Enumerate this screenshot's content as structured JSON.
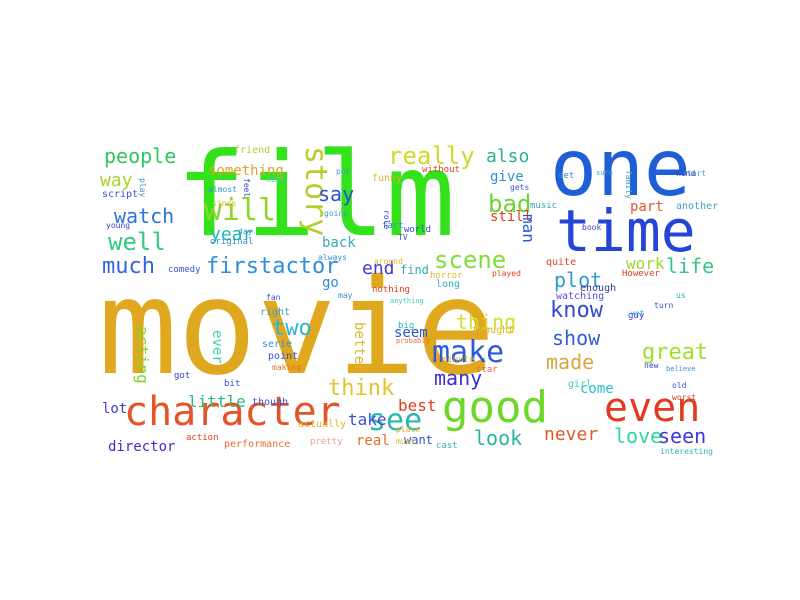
{
  "words": [
    {
      "text": "movie",
      "color": "#e0a81e",
      "key": "movie"
    },
    {
      "text": "film",
      "color": "#33e21a",
      "key": "film"
    },
    {
      "text": "one",
      "color": "#1f5fd6",
      "key": "one"
    },
    {
      "text": "time",
      "color": "#2545d8",
      "key": "time"
    },
    {
      "text": "character",
      "color": "#e4542b",
      "key": "character"
    },
    {
      "text": "good",
      "color": "#6ed82a",
      "key": "good"
    },
    {
      "text": "even",
      "color": "#e03a1f",
      "key": "even"
    },
    {
      "text": "story",
      "color": "#b8cc2a",
      "key": "story"
    },
    {
      "text": "will",
      "color": "#8fd62a",
      "key": "will"
    },
    {
      "text": "make",
      "color": "#2d5bd8",
      "key": "make"
    },
    {
      "text": "see",
      "color": "#2ab7b0",
      "key": "see"
    },
    {
      "text": "really",
      "color": "#d0d82a",
      "key": "really"
    },
    {
      "text": "scene",
      "color": "#82dc3a",
      "key": "scene"
    },
    {
      "text": "firstactor",
      "color": "#2e8fd8",
      "key": "firstactor"
    },
    {
      "text": "people",
      "color": "#30c65e",
      "key": "people"
    },
    {
      "text": "well",
      "color": "#34cc7a",
      "key": "well"
    },
    {
      "text": "much",
      "color": "#3565dd",
      "key": "much"
    },
    {
      "text": "watch",
      "color": "#2b76d8",
      "key": "watch"
    },
    {
      "text": "way",
      "color": "#a6d62a",
      "key": "way"
    },
    {
      "text": "year",
      "color": "#1fb9b8",
      "key": "year"
    },
    {
      "text": "say",
      "color": "#2c50d8",
      "key": "say"
    },
    {
      "text": "bad",
      "color": "#6bd338",
      "key": "bad"
    },
    {
      "text": "also",
      "color": "#28b38f",
      "key": "also"
    },
    {
      "text": "end",
      "color": "#3b3ed8",
      "key": "end"
    },
    {
      "text": "think",
      "color": "#e1c42a",
      "key": "think"
    },
    {
      "text": "thing",
      "color": "#d7dc2c",
      "key": "thing"
    },
    {
      "text": "two",
      "color": "#2bb6d0",
      "key": "two"
    },
    {
      "text": "great",
      "color": "#9fe02a",
      "key": "great"
    },
    {
      "text": "know",
      "color": "#3448d8",
      "key": "know"
    },
    {
      "text": "life",
      "color": "#31c987",
      "key": "life"
    },
    {
      "text": "plot",
      "color": "#2b9bd2",
      "key": "plot"
    },
    {
      "text": "show",
      "color": "#2e5ed6",
      "key": "show"
    },
    {
      "text": "made",
      "color": "#d8a63a",
      "key": "made"
    },
    {
      "text": "many",
      "color": "#3a2fd0",
      "key": "many"
    },
    {
      "text": "look",
      "color": "#29b59a",
      "key": "look"
    },
    {
      "text": "never",
      "color": "#e05a2a",
      "key": "never"
    },
    {
      "text": "love",
      "color": "#2ed6a4",
      "key": "love"
    },
    {
      "text": "seen",
      "color": "#3d38d6",
      "key": "seen"
    },
    {
      "text": "work",
      "color": "#9ed82b",
      "key": "work"
    },
    {
      "text": "acting",
      "color": "#7cd62a",
      "key": "acting"
    },
    {
      "text": "little",
      "color": "#30b982",
      "key": "little"
    },
    {
      "text": "take",
      "color": "#3651d8",
      "key": "take"
    },
    {
      "text": "best",
      "color": "#e0401f",
      "key": "best"
    },
    {
      "text": "real",
      "color": "#e86d2b",
      "key": "real"
    },
    {
      "text": "director",
      "color": "#3a2fd0",
      "key": "director"
    },
    {
      "text": "lot",
      "color": "#3e3dd6",
      "key": "lot"
    },
    {
      "text": "come",
      "color": "#2bb8ce",
      "key": "come"
    },
    {
      "text": "seem",
      "color": "#2a55d4",
      "key": "seem"
    },
    {
      "text": "better",
      "color": "#e0b52a",
      "key": "better"
    },
    {
      "text": "still",
      "color": "#e0401f",
      "key": "still"
    },
    {
      "text": "man",
      "color": "#2a5ad8",
      "key": "man"
    },
    {
      "text": "go",
      "color": "#2e8fd8",
      "key": "go"
    },
    {
      "text": "part",
      "color": "#e05a2a",
      "key": "part"
    },
    {
      "text": "give",
      "color": "#2e8fd8",
      "key": "give"
    },
    {
      "text": "something",
      "color": "#dca42a",
      "key": "something"
    },
    {
      "text": "back",
      "color": "#33a9c2",
      "key": "back"
    },
    {
      "text": "want",
      "color": "#2a50d8",
      "key": "want"
    },
    {
      "text": "ever",
      "color": "#3fd0a8",
      "key": "ever"
    },
    {
      "text": "find",
      "color": "#33a9c2",
      "key": "find"
    },
    {
      "text": "though",
      "color": "#3655d8",
      "key": "though"
    },
    {
      "text": "actually",
      "color": "#e0b52a",
      "key": "actually"
    },
    {
      "text": "performance",
      "color": "#e86d2b",
      "key": "performance"
    },
    {
      "text": "action",
      "color": "#e0401f",
      "key": "action"
    },
    {
      "text": "pretty",
      "color": "#f0a18a",
      "key": "pretty"
    },
    {
      "text": "thought",
      "color": "#e0b52a",
      "key": "thought"
    },
    {
      "text": "enough",
      "color": "#3a3a8e",
      "key": "enough"
    },
    {
      "text": "watching",
      "color": "#5a4fd8",
      "key": "watching"
    },
    {
      "text": "script",
      "color": "#3651d8",
      "key": "script"
    },
    {
      "text": "friend",
      "color": "#c0c43a",
      "key": "friend"
    },
    {
      "text": "original",
      "color": "#3a8fd0",
      "key": "original"
    },
    {
      "text": "funny",
      "color": "#e0b52a",
      "key": "funny"
    },
    {
      "text": "another",
      "color": "#3aa0c0",
      "key": "another"
    },
    {
      "text": "music",
      "color": "#3aa0c0",
      "key": "music"
    },
    {
      "text": "However",
      "color": "#e0401f",
      "key": "however"
    },
    {
      "text": "quite",
      "color": "#e0401f",
      "key": "quite"
    },
    {
      "text": "long",
      "color": "#2ab7b0",
      "key": "long"
    },
    {
      "text": "nothing",
      "color": "#e0401f",
      "key": "nothing"
    },
    {
      "text": "horror",
      "color": "#e0b52a",
      "key": "horror"
    },
    {
      "text": "world",
      "color": "#3e3dd6",
      "key": "world"
    },
    {
      "text": "point",
      "color": "#3651d8",
      "key": "point"
    },
    {
      "text": "making",
      "color": "#e86d2b",
      "key": "making"
    },
    {
      "text": "serie",
      "color": "#3a8fd0",
      "key": "serie"
    },
    {
      "text": "big",
      "color": "#2ab7b0",
      "key": "big"
    },
    {
      "text": "star",
      "color": "#e86d2b",
      "key": "star"
    },
    {
      "text": "right",
      "color": "#3aa0c0",
      "key": "right"
    },
    {
      "text": "girl",
      "color": "#3fd0a8",
      "key": "girl"
    },
    {
      "text": "guy",
      "color": "#3e3dd6",
      "key": "guy"
    },
    {
      "text": "cast",
      "color": "#2ab7b0",
      "key": "cast"
    },
    {
      "text": "comedy",
      "color": "#3651d8",
      "key": "comedy"
    },
    {
      "text": "minute",
      "color": "#e0b52a",
      "key": "minute"
    },
    {
      "text": "without",
      "color": "#e0401f",
      "key": "without"
    },
    {
      "text": "played",
      "color": "#e0401f",
      "key": "played"
    },
    {
      "text": "fact",
      "color": "#3a8fd0",
      "key": "fact"
    },
    {
      "text": "set",
      "color": "#3a8fd0",
      "key": "set"
    },
    {
      "text": "us",
      "color": "#2ab7b0",
      "key": "us"
    },
    {
      "text": "bit",
      "color": "#3651d8",
      "key": "bit"
    },
    {
      "text": "got",
      "color": "#3e3dd6",
      "key": "got"
    },
    {
      "text": "may",
      "color": "#3a8fd0",
      "key": "may"
    },
    {
      "text": "role",
      "color": "#3e3dd6",
      "key": "role"
    },
    {
      "text": "feel",
      "color": "#3e3dd6",
      "key": "feel"
    },
    {
      "text": "always",
      "color": "#3a8fd0",
      "key": "always"
    },
    {
      "text": "put",
      "color": "#3aa0c0",
      "key": "put"
    },
    {
      "text": "place",
      "color": "#e0b52a",
      "key": "place"
    },
    {
      "text": "interesting",
      "color": "#2ab7b0",
      "key": "interesting"
    },
    {
      "text": "probably",
      "color": "#e86d2b",
      "key": "probably"
    },
    {
      "text": "must",
      "color": "#e0b52a",
      "key": "must"
    },
    {
      "text": "fan",
      "color": "#3651d8",
      "key": "fan"
    },
    {
      "text": "gets",
      "color": "#3651d8",
      "key": "gets"
    },
    {
      "text": "turn",
      "color": "#3651d8",
      "key": "turn"
    },
    {
      "text": "new",
      "color": "#3e3dd6",
      "key": "new"
    },
    {
      "text": "worst",
      "color": "#e0401f",
      "key": "worst"
    },
    {
      "text": "old",
      "color": "#3651d8",
      "key": "old"
    },
    {
      "text": "start",
      "color": "#3aa0c0",
      "key": "start"
    },
    {
      "text": "kind",
      "color": "#3e3dd6",
      "key": "kind"
    },
    {
      "text": "book",
      "color": "#3e3dd6",
      "key": "book"
    },
    {
      "text": "young",
      "color": "#3e3dd6",
      "key": "young"
    },
    {
      "text": "day",
      "color": "#3a8fd0",
      "key": "day"
    },
    {
      "text": "family",
      "color": "#3aa0c0",
      "key": "family"
    },
    {
      "text": "going",
      "color": "#3aa0c0",
      "key": "going"
    },
    {
      "text": "almost",
      "color": "#3a8fd0",
      "key": "almost"
    },
    {
      "text": "around",
      "color": "#e0b52a",
      "key": "around"
    },
    {
      "text": "anything",
      "color": "#3fd0a8",
      "key": "anything"
    },
    {
      "text": "yet",
      "color": "#3aa0c0",
      "key": "yet"
    },
    {
      "text": "believe",
      "color": "#3a8fd0",
      "key": "believe"
    },
    {
      "text": "TV",
      "color": "#3651d8",
      "key": "tv"
    },
    {
      "text": "sure",
      "color": "#3aa0c0",
      "key": "sure"
    },
    {
      "text": "since",
      "color": "#e0b52a",
      "key": "since"
    },
    {
      "text": "play",
      "color": "#3a8fd0",
      "key": "play"
    },
    {
      "text": "need",
      "color": "#3fd0a8",
      "key": "need"
    }
  ]
}
